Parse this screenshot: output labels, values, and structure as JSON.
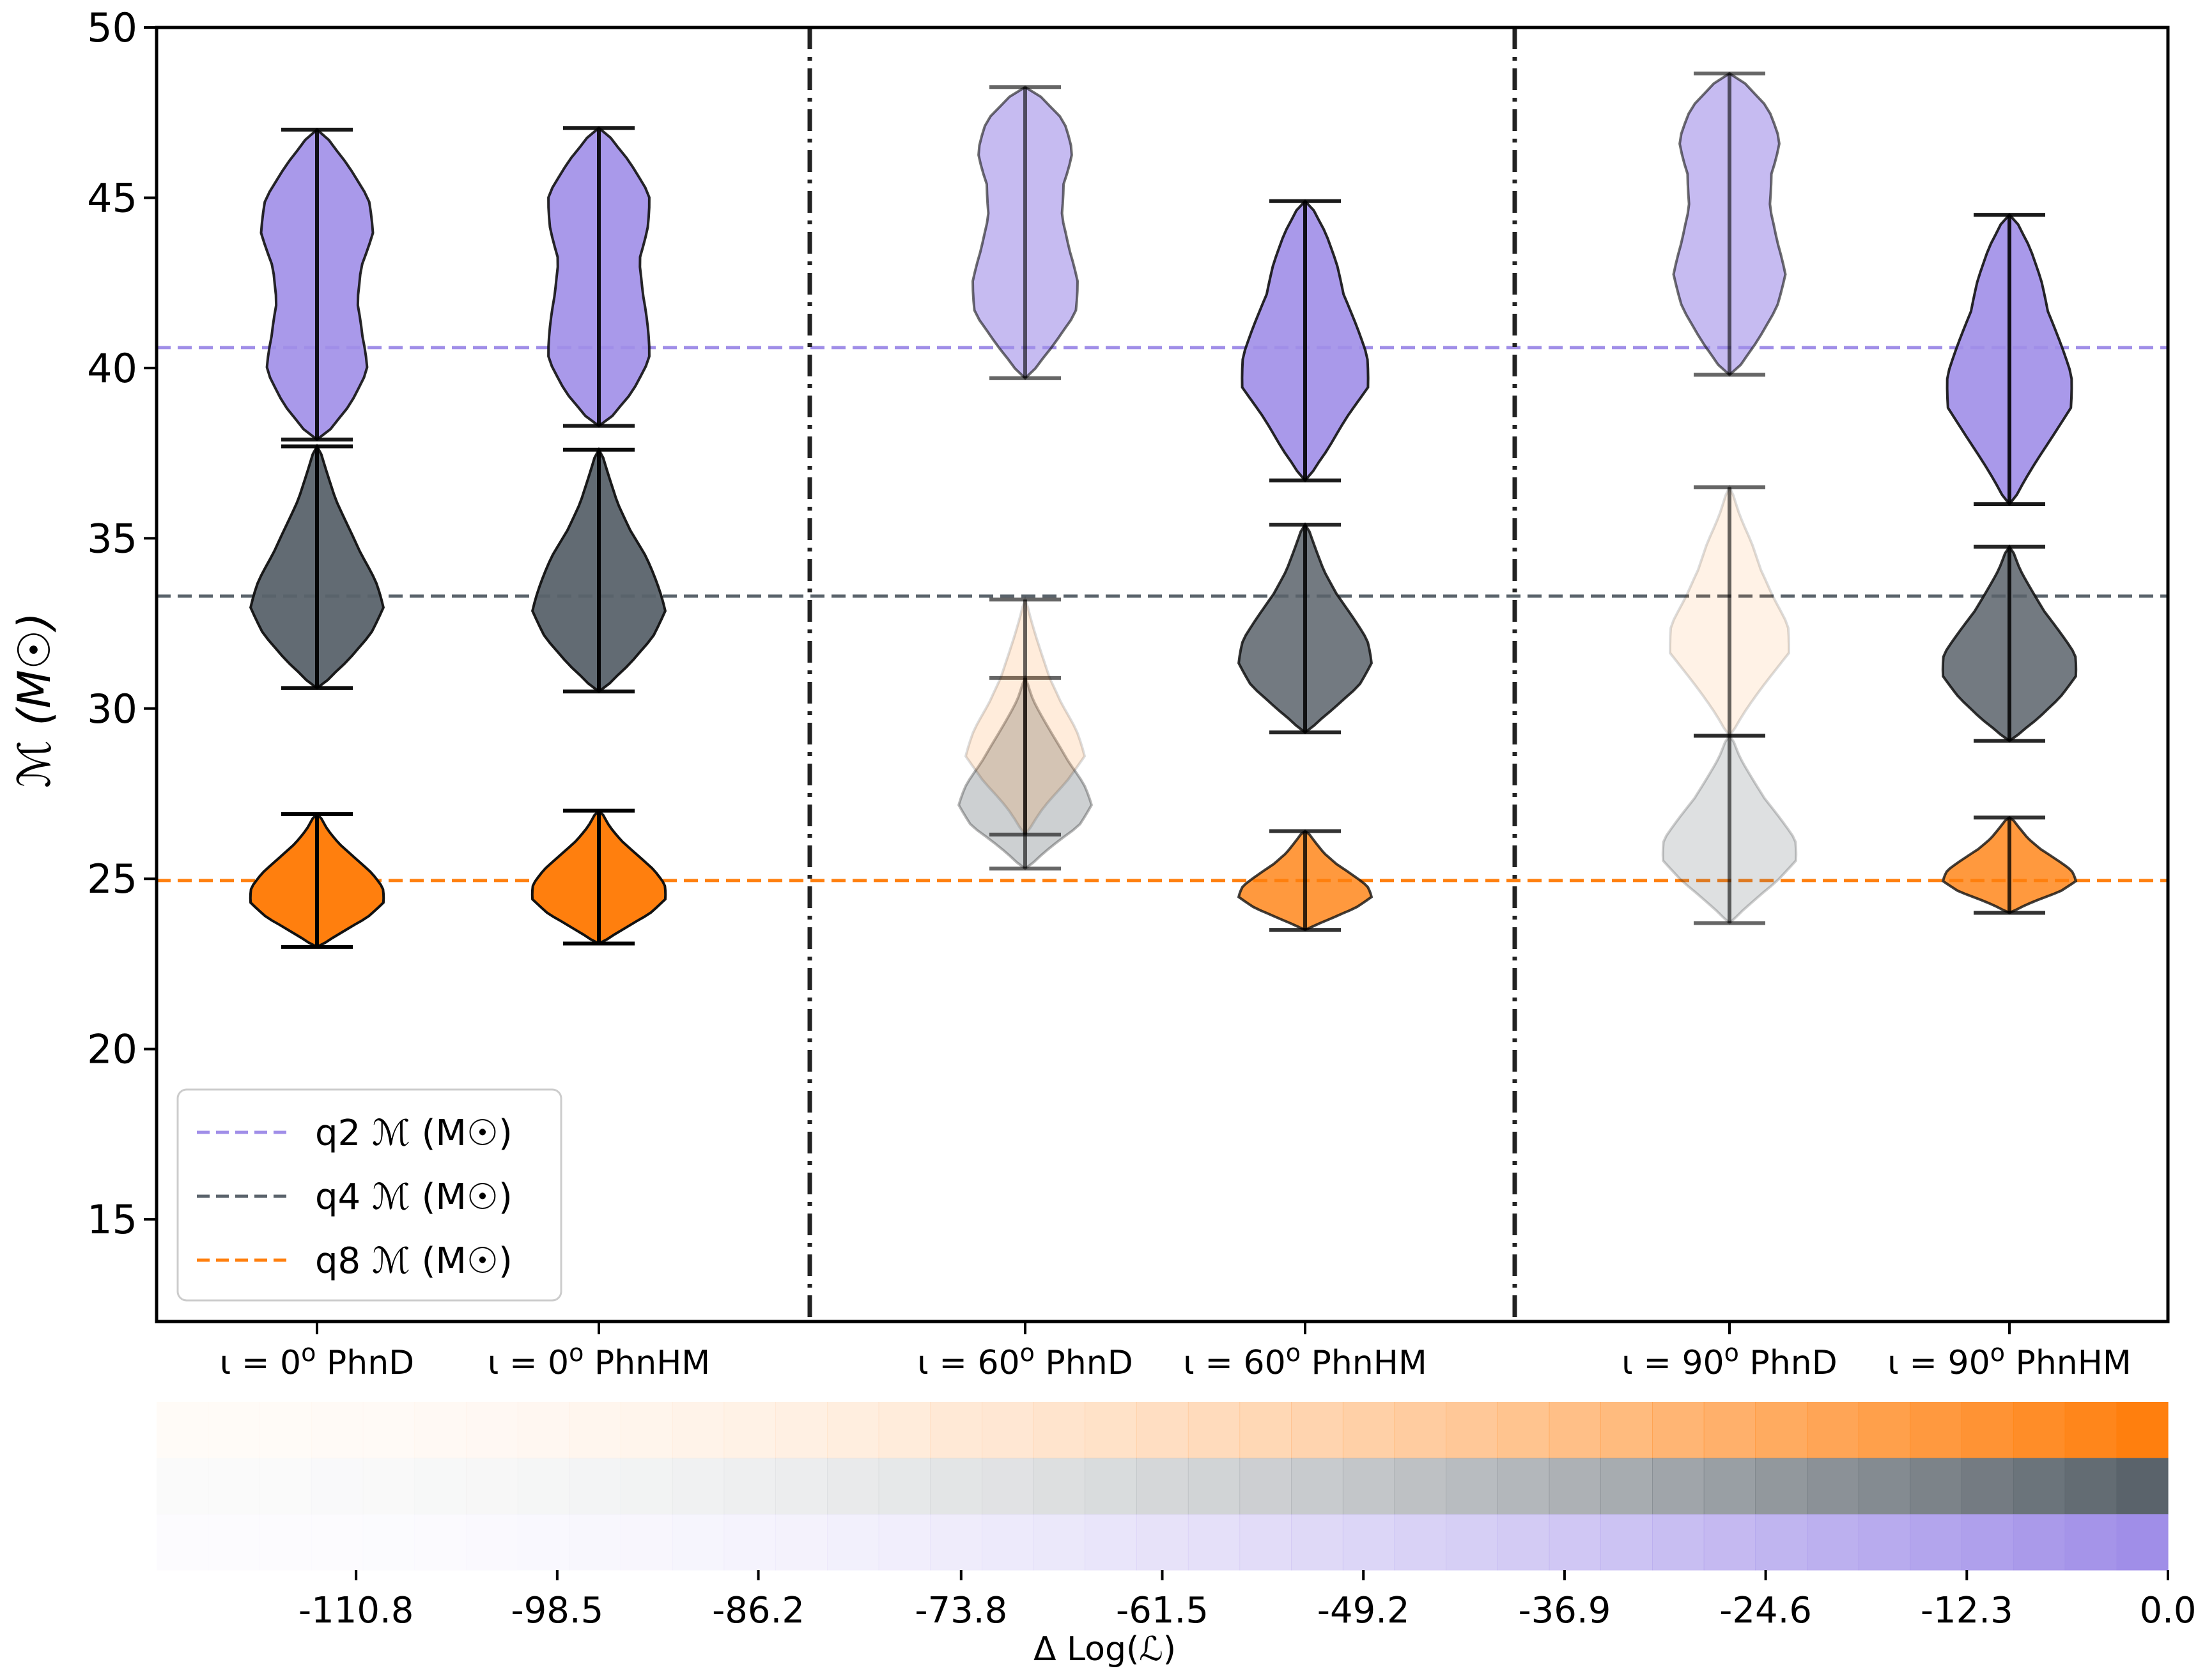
{
  "chart_data": {
    "type": "violin",
    "ylabel": "ℳ (M☉)",
    "ylim": [
      12,
      50
    ],
    "yticks": [
      15,
      20,
      25,
      30,
      35,
      40,
      45,
      50
    ],
    "groups": [
      "ι = 0ᵒ PhnD",
      "ι = 0ᵒ PhnHM",
      "ι = 60ᵒ PhnD",
      "ι = 60ᵒ PhnHM",
      "ι = 90ᵒ PhnD",
      "ι = 90ᵒ PhnHM"
    ],
    "xtick_labels": [
      {
        "iota": "ι = 0",
        "deg": "o",
        "model": " PhnD"
      },
      {
        "iota": "ι = 0",
        "deg": "o",
        "model": " PhnHM"
      },
      {
        "iota": "ι = 60",
        "deg": "o",
        "model": " PhnD"
      },
      {
        "iota": "ι = 60",
        "deg": "o",
        "model": " PhnHM"
      },
      {
        "iota": "ι = 90",
        "deg": "o",
        "model": " PhnD"
      },
      {
        "iota": "ι = 90",
        "deg": "o",
        "model": " PhnHM"
      }
    ],
    "reference_lines": [
      {
        "name": "q2",
        "value": 40.6,
        "color": "#a08ee8"
      },
      {
        "name": "q4",
        "value": 33.3,
        "color": "#5a636b"
      },
      {
        "name": "q8",
        "value": 24.95,
        "color": "#ff7f0e"
      }
    ],
    "series": [
      {
        "name": "q2",
        "fill": "#a08ee8",
        "violins": [
          {
            "group": 0,
            "min": 37.9,
            "max": 47.0,
            "shape": [
              0.3,
              0.65,
              0.8,
              0.65,
              0.55,
              0.6,
              0.8,
              0.82,
              0.6,
              0.25
            ],
            "alpha": 0.9
          },
          {
            "group": 1,
            "min": 38.3,
            "max": 47.05,
            "shape": [
              0.3,
              0.65,
              0.8,
              0.7,
              0.6,
              0.55,
              0.7,
              0.8,
              0.6,
              0.25
            ],
            "alpha": 0.9
          },
          {
            "group": 2,
            "min": 39.7,
            "max": 48.25,
            "shape": [
              0.2,
              0.55,
              0.8,
              0.75,
              0.6,
              0.5,
              0.55,
              0.75,
              0.75,
              0.35
            ],
            "alpha": 0.6
          },
          {
            "group": 3,
            "min": 36.7,
            "max": 44.9,
            "shape": [
              0.15,
              0.45,
              0.65,
              0.9,
              0.85,
              0.7,
              0.55,
              0.5,
              0.4,
              0.2
            ],
            "alpha": 0.9
          },
          {
            "group": 4,
            "min": 39.8,
            "max": 48.65,
            "shape": [
              0.25,
              0.55,
              0.75,
              0.8,
              0.65,
              0.55,
              0.6,
              0.8,
              0.75,
              0.35
            ],
            "alpha": 0.6
          },
          {
            "group": 5,
            "min": 36.0,
            "max": 44.5,
            "shape": [
              0.15,
              0.4,
              0.65,
              0.88,
              0.85,
              0.7,
              0.55,
              0.5,
              0.4,
              0.2
            ],
            "alpha": 0.9
          }
        ]
      },
      {
        "name": "q4",
        "fill": "#5a636b",
        "violins": [
          {
            "group": 0,
            "min": 30.6,
            "max": 37.7,
            "shape": [
              0.2,
              0.6,
              0.85,
              0.95,
              0.8,
              0.6,
              0.45,
              0.3,
              0.2,
              0.1
            ],
            "alpha": 0.95
          },
          {
            "group": 1,
            "min": 30.5,
            "max": 37.6,
            "shape": [
              0.2,
              0.6,
              0.85,
              0.95,
              0.8,
              0.65,
              0.45,
              0.3,
              0.2,
              0.1
            ],
            "alpha": 0.95
          },
          {
            "group": 2,
            "min": 25.3,
            "max": 30.9,
            "shape": [
              0.15,
              0.5,
              0.85,
              0.95,
              0.8,
              0.6,
              0.45,
              0.3,
              0.15,
              0.05
            ],
            "alpha": 0.3
          },
          {
            "group": 3,
            "min": 29.3,
            "max": 35.4,
            "shape": [
              0.15,
              0.55,
              0.85,
              0.95,
              0.85,
              0.65,
              0.45,
              0.3,
              0.2,
              0.1
            ],
            "alpha": 0.85
          },
          {
            "group": 4,
            "min": 23.7,
            "max": 29.2,
            "shape": [
              0.1,
              0.45,
              0.75,
              0.95,
              0.9,
              0.7,
              0.5,
              0.35,
              0.2,
              0.1
            ],
            "alpha": 0.2
          },
          {
            "group": 5,
            "min": 29.05,
            "max": 34.75,
            "shape": [
              0.15,
              0.55,
              0.8,
              0.95,
              0.9,
              0.7,
              0.5,
              0.35,
              0.2,
              0.1
            ],
            "alpha": 0.85
          }
        ]
      },
      {
        "name": "q8",
        "fill": "#ff7f0e",
        "violins": [
          {
            "group": 0,
            "min": 23.0,
            "max": 26.9,
            "shape": [
              0.15,
              0.5,
              0.8,
              0.95,
              0.9,
              0.75,
              0.55,
              0.35,
              0.2,
              0.1
            ],
            "alpha": 1.0
          },
          {
            "group": 1,
            "min": 23.1,
            "max": 27.0,
            "shape": [
              0.15,
              0.5,
              0.8,
              0.95,
              0.9,
              0.75,
              0.55,
              0.35,
              0.2,
              0.1
            ],
            "alpha": 1.0
          },
          {
            "group": 2,
            "min": 26.3,
            "max": 33.2,
            "shape": [
              0.1,
              0.35,
              0.65,
              0.85,
              0.7,
              0.5,
              0.35,
              0.25,
              0.15,
              0.05
            ],
            "alpha": 0.15
          },
          {
            "group": 3,
            "min": 23.5,
            "max": 26.4,
            "shape": [
              0.1,
              0.5,
              0.8,
              0.95,
              0.85,
              0.65,
              0.45,
              0.3,
              0.2,
              0.1
            ],
            "alpha": 0.8
          },
          {
            "group": 4,
            "min": 29.2,
            "max": 36.5,
            "shape": [
              0.1,
              0.35,
              0.6,
              0.85,
              0.8,
              0.6,
              0.45,
              0.35,
              0.2,
              0.08
            ],
            "alpha": 0.1
          },
          {
            "group": 5,
            "min": 24.0,
            "max": 26.8,
            "shape": [
              0.1,
              0.45,
              0.8,
              0.95,
              0.85,
              0.65,
              0.45,
              0.3,
              0.2,
              0.1
            ],
            "alpha": 0.8
          }
        ]
      }
    ],
    "legend": {
      "position": "lower-left",
      "entries": [
        {
          "series": "q2",
          "prefix": "q2 ",
          "symbol": "ℳ",
          "unit": " (M☉)"
        },
        {
          "series": "q4",
          "prefix": "q4 ",
          "symbol": "ℳ",
          "unit": " (M☉)"
        },
        {
          "series": "q8",
          "prefix": "q8 ",
          "symbol": "ℳ",
          "unit": " (M☉)"
        }
      ]
    },
    "colorbar": {
      "label": "Δ Log(ℒ)",
      "range": [
        -123.0,
        0.0
      ],
      "ticks": [
        "-110.8",
        "-98.5",
        "-86.2",
        "-73.8",
        "-61.5",
        "-49.2",
        "-36.9",
        "-24.6",
        "-12.3",
        "0.0"
      ],
      "tick_values": [
        -110.8,
        -98.5,
        -86.2,
        -73.8,
        -61.5,
        -49.2,
        -36.9,
        -24.6,
        -12.3,
        0.0
      ],
      "rows": [
        {
          "series": "q8",
          "color": "#ff7f0e"
        },
        {
          "series": "q4",
          "color": "#5a636b"
        },
        {
          "series": "q2",
          "color": "#a08ee8"
        }
      ]
    }
  }
}
